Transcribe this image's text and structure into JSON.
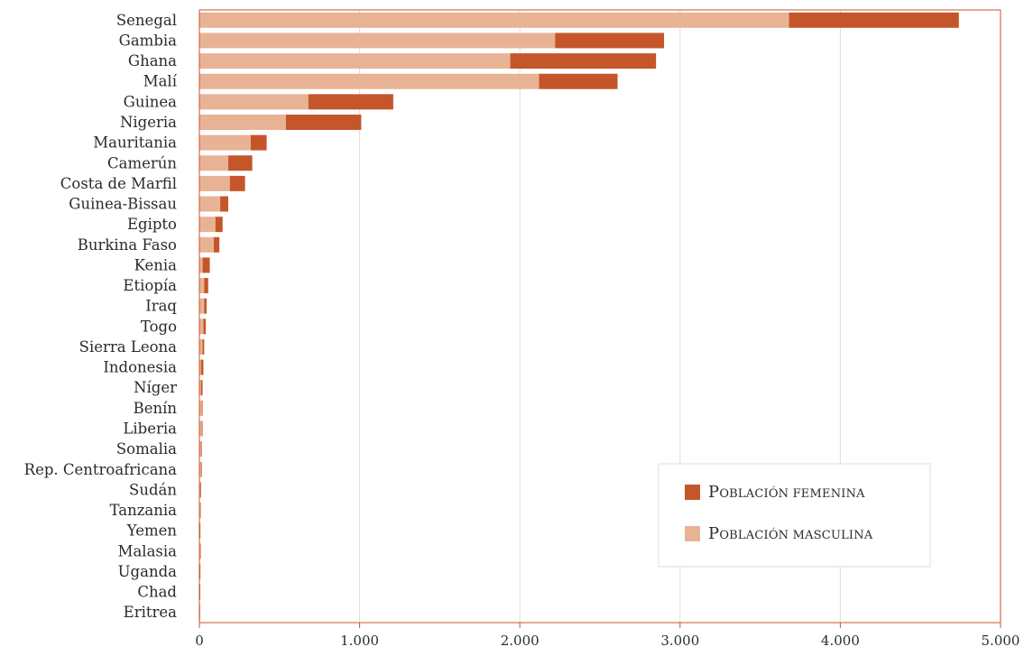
{
  "chart_data": {
    "type": "bar",
    "orientation": "horizontal",
    "stacked": true,
    "categories": [
      "Senegal",
      "Gambia",
      "Ghana",
      "Malí",
      "Guinea",
      "Nigeria",
      "Mauritania",
      "Camerún",
      "Costa de Marfil",
      "Guinea-Bissau",
      "Egipto",
      "Burkina Faso",
      "Kenia",
      "Etiopía",
      "Iraq",
      "Togo",
      "Sierra Leona",
      "Indonesia",
      "Níger",
      "Benín",
      "Liberia",
      "Somalia",
      "Rep. Centroafricana",
      "Sudán",
      "Tanzania",
      "Yemen",
      "Malasia",
      "Uganda",
      "Chad",
      "Eritrea"
    ],
    "series": [
      {
        "name": "Población masculina",
        "color": "#e8b394",
        "values": [
          3680,
          2220,
          1940,
          2120,
          680,
          540,
          320,
          180,
          190,
          130,
          100,
          90,
          20,
          30,
          30,
          25,
          20,
          10,
          10,
          15,
          15,
          10,
          10,
          5,
          5,
          3,
          5,
          3,
          2,
          1
        ]
      },
      {
        "name": "Población femenina",
        "color": "#c5562a",
        "values": [
          1060,
          680,
          910,
          490,
          530,
          470,
          100,
          150,
          95,
          50,
          45,
          35,
          45,
          25,
          15,
          15,
          10,
          15,
          10,
          5,
          5,
          5,
          5,
          5,
          3,
          3,
          2,
          2,
          1,
          1
        ]
      }
    ],
    "xlim": [
      0,
      5000
    ],
    "xticks": [
      0,
      1000,
      2000,
      3000,
      4000,
      5000
    ],
    "xtick_labels": [
      "0",
      "1.000",
      "2.000",
      "3.000",
      "4.000",
      "5.000"
    ],
    "title": "",
    "xlabel": "",
    "ylabel": "",
    "grid": "vertical",
    "legend_position": "bottom-right",
    "legend_order": [
      "Población femenina",
      "Población masculina"
    ],
    "frame_color": "#c5562a",
    "grid_color": "#ecd9cd"
  }
}
